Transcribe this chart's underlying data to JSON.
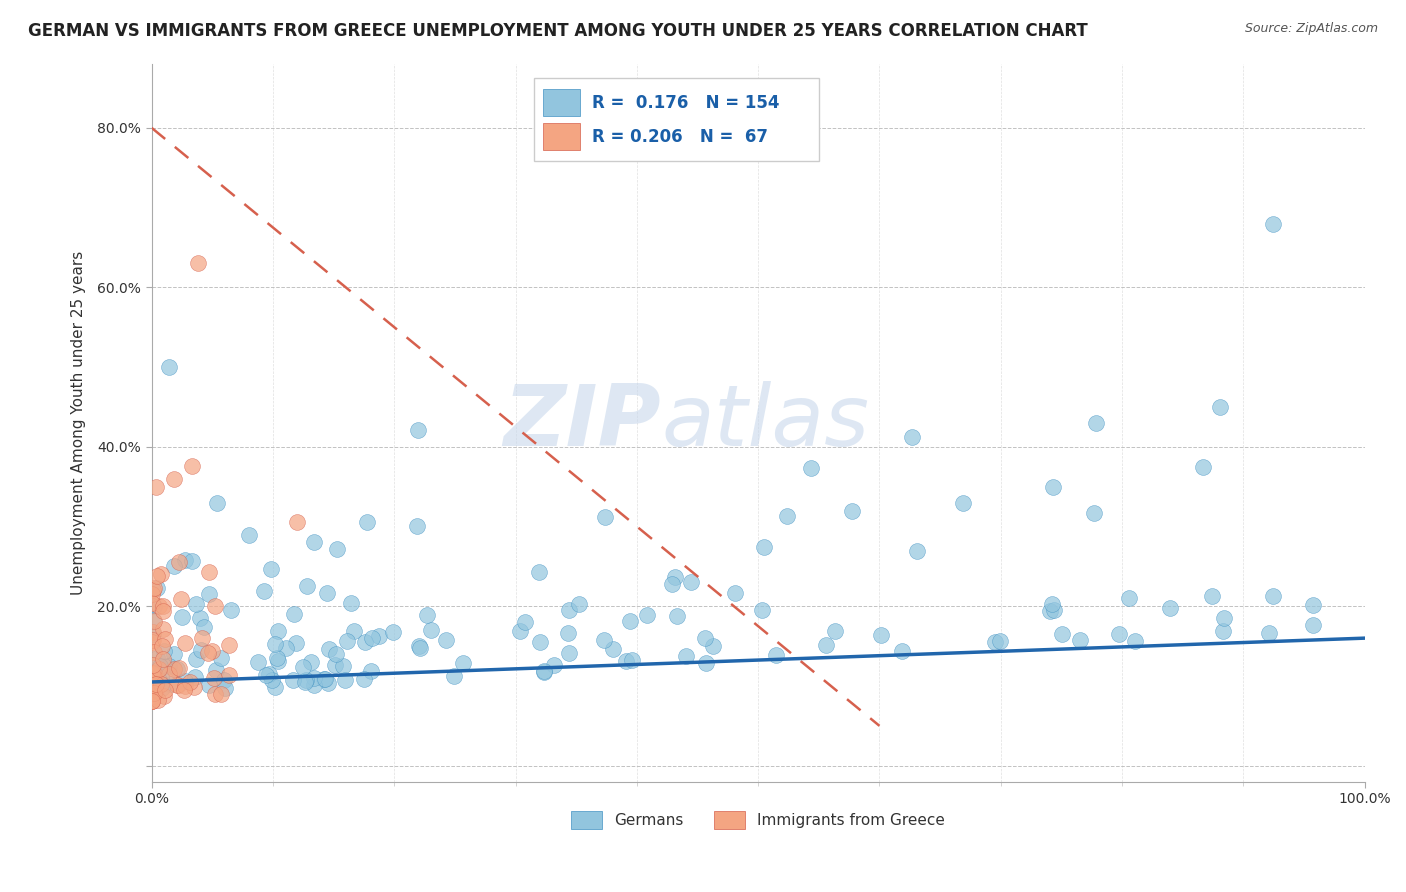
{
  "title": "GERMAN VS IMMIGRANTS FROM GREECE UNEMPLOYMENT AMONG YOUTH UNDER 25 YEARS CORRELATION CHART",
  "source": "Source: ZipAtlas.com",
  "ylabel": "Unemployment Among Youth under 25 years",
  "xlim": [
    0,
    1
  ],
  "ylim": [
    -0.02,
    0.88
  ],
  "y_ticks": [
    0.0,
    0.2,
    0.4,
    0.6,
    0.8
  ],
  "y_tick_labels": [
    "",
    "20.0%",
    "40.0%",
    "60.0%",
    "80.0%"
  ],
  "watermark_zip": "ZIP",
  "watermark_atlas": "atlas",
  "legend_r1": "0.176",
  "legend_n1": "154",
  "legend_r2": "0.206",
  "legend_n2": "67",
  "blue_color": "#92c5de",
  "blue_edge_color": "#4393c3",
  "pink_color": "#f4a582",
  "pink_edge_color": "#d6604d",
  "blue_line_color": "#2166ac",
  "pink_line_color": "#d6604d",
  "title_fontsize": 12,
  "axis_label_fontsize": 11,
  "background_color": "#ffffff",
  "seed": 42,
  "n_blue": 154,
  "n_pink": 67
}
